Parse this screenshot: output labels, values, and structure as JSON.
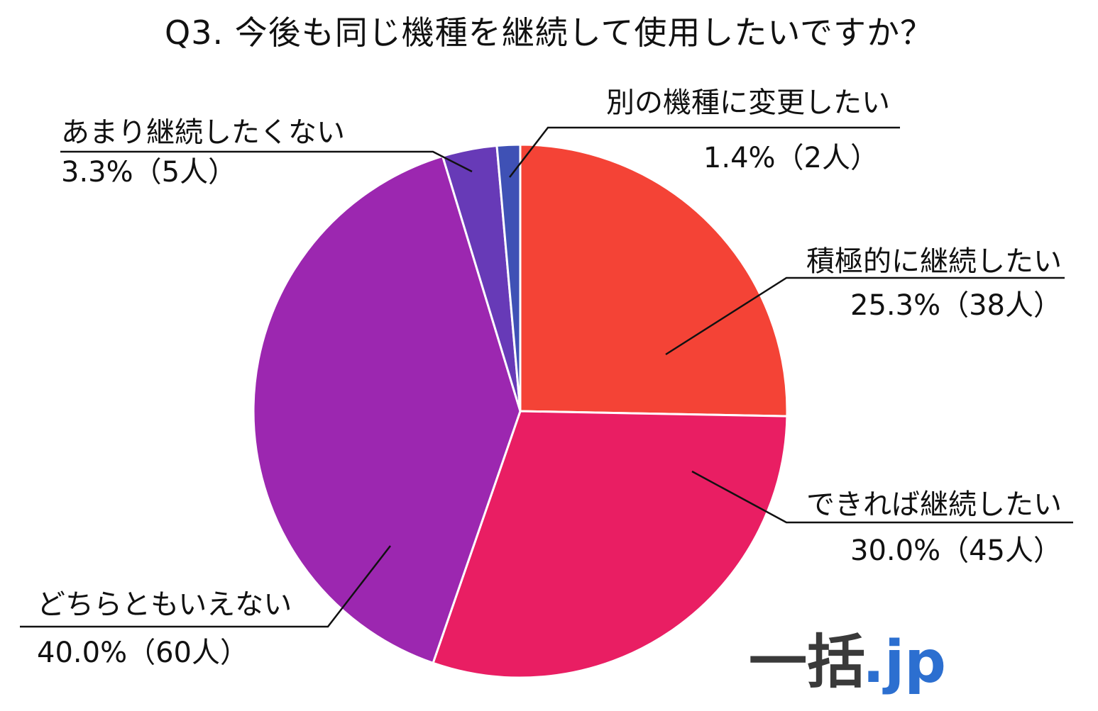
{
  "chart_data": {
    "type": "pie",
    "title": "Q3. 今後も同じ機種を継続して使用したいですか？",
    "start_angle_deg": 0,
    "direction": "clockwise",
    "slices": [
      {
        "label": "積極的に継続したい",
        "value": 25.3,
        "count_label": "25.3%（38人）",
        "color": "#f44336"
      },
      {
        "label": "できれば継続したい",
        "value": 30.0,
        "count_label": "30.0%（45人）",
        "color": "#e91e63"
      },
      {
        "label": "どちらともいえない",
        "value": 40.0,
        "count_label": "40.0%（60人）",
        "color": "#9c27b0"
      },
      {
        "label": "あまり継続したくない",
        "value": 3.3,
        "count_label": "3.3%（5人）",
        "color": "#673ab7"
      },
      {
        "label": "別の機種に変更したい",
        "value": 1.4,
        "count_label": "1.4%（2人）",
        "color": "#3f51b5"
      }
    ]
  },
  "logo": {
    "main": "一括",
    "suffix": ".jp"
  }
}
